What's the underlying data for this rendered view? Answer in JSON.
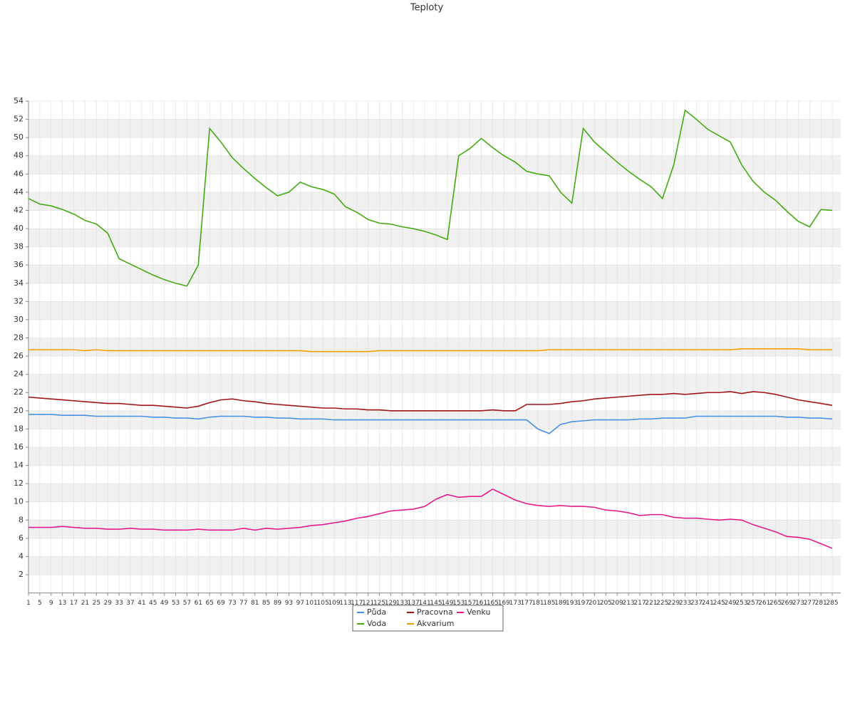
{
  "chart_data": {
    "type": "line",
    "title": "Teploty",
    "x": [
      1,
      5,
      9,
      13,
      17,
      21,
      25,
      29,
      33,
      37,
      41,
      45,
      49,
      53,
      57,
      61,
      65,
      69,
      73,
      77,
      81,
      85,
      89,
      93,
      97,
      101,
      105,
      109,
      113,
      117,
      121,
      125,
      129,
      133,
      137,
      141,
      145,
      149,
      153,
      157,
      161,
      165,
      169,
      173,
      177,
      181,
      185,
      189,
      193,
      197,
      201,
      205,
      209,
      213,
      217,
      221,
      225,
      229,
      233,
      237,
      241,
      245,
      249,
      253,
      257,
      261,
      265,
      269,
      273,
      277,
      281,
      285
    ],
    "xlim": [
      1,
      288
    ],
    "ylim": [
      0,
      54
    ],
    "yticks": [
      2,
      4,
      6,
      8,
      10,
      12,
      14,
      16,
      18,
      20,
      22,
      24,
      26,
      28,
      30,
      32,
      34,
      36,
      38,
      40,
      42,
      44,
      46,
      48,
      50,
      52,
      54
    ],
    "grid": true,
    "legend": "bottom",
    "series": [
      {
        "name": "Půda",
        "color": "#4a90e2",
        "values": [
          19.6,
          19.6,
          19.6,
          19.5,
          19.5,
          19.5,
          19.4,
          19.4,
          19.4,
          19.4,
          19.4,
          19.3,
          19.3,
          19.2,
          19.2,
          19.1,
          19.3,
          19.4,
          19.4,
          19.4,
          19.3,
          19.3,
          19.2,
          19.2,
          19.1,
          19.1,
          19.1,
          19.0,
          19.0,
          19.0,
          19.0,
          19.0,
          19.0,
          19.0,
          19.0,
          19.0,
          19.0,
          19.0,
          19.0,
          19.0,
          19.0,
          19.0,
          19.0,
          19.0,
          19.0,
          18.0,
          17.5,
          18.5,
          18.8,
          18.9,
          19.0,
          19.0,
          19.0,
          19.0,
          19.1,
          19.1,
          19.2,
          19.2,
          19.2,
          19.4,
          19.4,
          19.4,
          19.4,
          19.4,
          19.4,
          19.4,
          19.4,
          19.3,
          19.3,
          19.2,
          19.2,
          19.1
        ]
      },
      {
        "name": "Voda",
        "color": "#44aa11",
        "values": [
          43.3,
          42.7,
          42.5,
          42.1,
          41.6,
          40.9,
          40.5,
          39.5,
          36.7,
          36.1,
          35.5,
          34.9,
          34.4,
          34.0,
          33.7,
          36.0,
          51.0,
          49.5,
          47.8,
          46.6,
          45.5,
          44.5,
          43.6,
          44.0,
          45.1,
          44.6,
          44.3,
          43.8,
          42.4,
          41.8,
          41.0,
          40.6,
          40.5,
          40.2,
          40.0,
          39.7,
          39.3,
          38.8,
          48.0,
          48.8,
          49.9,
          48.9,
          48.0,
          47.3,
          46.3,
          46.0,
          45.8,
          44.0,
          42.8,
          51.0,
          49.5,
          48.4,
          47.3,
          46.3,
          45.4,
          44.6,
          43.3,
          47.0,
          53.0,
          52.0,
          50.9,
          50.2,
          49.5,
          47.0,
          45.2,
          44.0,
          43.1,
          41.9,
          40.8,
          40.2,
          42.1,
          42.0
        ]
      },
      {
        "name": "Pracovna",
        "color": "#a31515",
        "values": [
          21.5,
          21.4,
          21.3,
          21.2,
          21.1,
          21.0,
          20.9,
          20.8,
          20.8,
          20.7,
          20.6,
          20.6,
          20.5,
          20.4,
          20.3,
          20.5,
          20.9,
          21.2,
          21.3,
          21.1,
          21.0,
          20.8,
          20.7,
          20.6,
          20.5,
          20.4,
          20.3,
          20.3,
          20.2,
          20.2,
          20.1,
          20.1,
          20.0,
          20.0,
          20.0,
          20.0,
          20.0,
          20.0,
          20.0,
          20.0,
          20.0,
          20.1,
          20.0,
          20.0,
          20.7,
          20.7,
          20.7,
          20.8,
          21.0,
          21.1,
          21.3,
          21.4,
          21.5,
          21.6,
          21.7,
          21.8,
          21.8,
          21.9,
          21.8,
          21.9,
          22.0,
          22.0,
          22.1,
          21.9,
          22.1,
          22.0,
          21.8,
          21.5,
          21.2,
          21.0,
          20.8,
          20.6
        ]
      },
      {
        "name": "Akvarium",
        "color": "#f5a000",
        "values": [
          26.7,
          26.7,
          26.7,
          26.7,
          26.7,
          26.6,
          26.7,
          26.6,
          26.6,
          26.6,
          26.6,
          26.6,
          26.6,
          26.6,
          26.6,
          26.6,
          26.6,
          26.6,
          26.6,
          26.6,
          26.6,
          26.6,
          26.6,
          26.6,
          26.6,
          26.5,
          26.5,
          26.5,
          26.5,
          26.5,
          26.5,
          26.6,
          26.6,
          26.6,
          26.6,
          26.6,
          26.6,
          26.6,
          26.6,
          26.6,
          26.6,
          26.6,
          26.6,
          26.6,
          26.6,
          26.6,
          26.7,
          26.7,
          26.7,
          26.7,
          26.7,
          26.7,
          26.7,
          26.7,
          26.7,
          26.7,
          26.7,
          26.7,
          26.7,
          26.7,
          26.7,
          26.7,
          26.7,
          26.8,
          26.8,
          26.8,
          26.8,
          26.8,
          26.8,
          26.7,
          26.7,
          26.7
        ]
      },
      {
        "name": "Venku",
        "color": "#e6198c",
        "values": [
          7.2,
          7.2,
          7.2,
          7.3,
          7.2,
          7.1,
          7.1,
          7.0,
          7.0,
          7.1,
          7.0,
          7.0,
          6.9,
          6.9,
          6.9,
          7.0,
          6.9,
          6.9,
          6.9,
          7.1,
          6.9,
          7.1,
          7.0,
          7.1,
          7.2,
          7.4,
          7.5,
          7.7,
          7.9,
          8.2,
          8.4,
          8.7,
          9.0,
          9.1,
          9.2,
          9.5,
          10.3,
          10.8,
          10.5,
          10.6,
          10.6,
          11.4,
          10.8,
          10.2,
          9.8,
          9.6,
          9.5,
          9.6,
          9.5,
          9.5,
          9.4,
          9.1,
          9.0,
          8.8,
          8.5,
          8.6,
          8.6,
          8.3,
          8.2,
          8.2,
          8.1,
          8.0,
          8.1,
          8.0,
          7.5,
          7.1,
          6.7,
          6.2,
          6.1,
          5.9,
          5.4,
          4.9
        ]
      }
    ]
  }
}
